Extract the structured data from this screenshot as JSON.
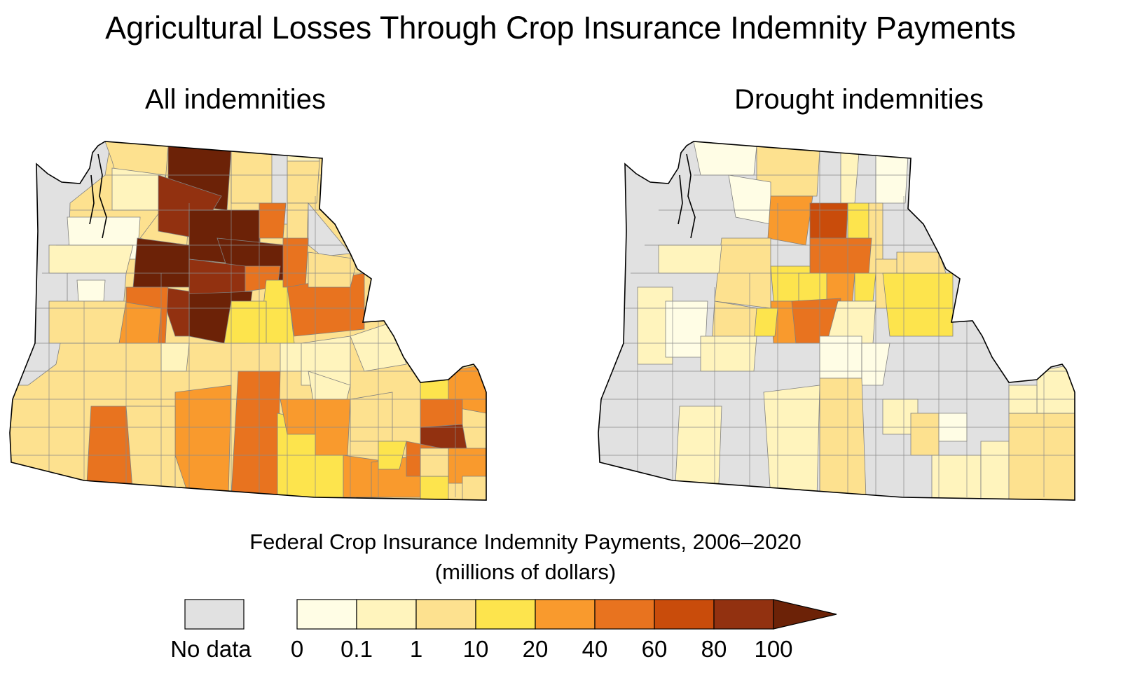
{
  "title": "Agricultural Losses Through Crop Insurance Indemnity Payments",
  "maps": [
    {
      "subtitle": "All indemnities"
    },
    {
      "subtitle": "Drought indemnities"
    }
  ],
  "legend": {
    "title_line1": "Federal Crop Insurance Indemnity Payments, 2006–2020",
    "title_line2": "(millions of dollars)",
    "no_data_label": "No data",
    "ticks": [
      "0",
      "0.1",
      "1",
      "10",
      "20",
      "40",
      "60",
      "80",
      "100"
    ],
    "colors": {
      "no_data": "#e1e1e1",
      "bins": [
        "#fffde5",
        "#fff4bd",
        "#fde18f",
        "#fde44d",
        "#f99a2d",
        "#e8731f",
        "#c94c0b",
        "#923110",
        "#6c2207"
      ]
    }
  },
  "map_data": {
    "all_indemnities": {
      "highest_class_counties": "north-central Washington",
      "pattern": "counties in eastern Washington and Oregon mostly 20–100+; western coastal counties 0–1 or no data"
    },
    "drought_indemnities": {
      "pattern": "mostly lower classes; peaks in central Washington (60–80); many counties with no data"
    }
  }
}
